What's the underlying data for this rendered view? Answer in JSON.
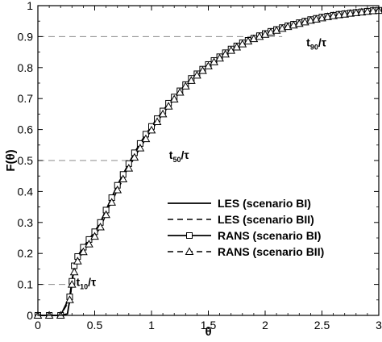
{
  "chart_data": {
    "type": "line",
    "xlabel": "θ",
    "ylabel": "F(θ)",
    "xlim": [
      0,
      3
    ],
    "ylim": [
      0,
      1
    ],
    "xticks": [
      0,
      0.5,
      1,
      1.5,
      2,
      2.5,
      3
    ],
    "xtick_labels": [
      "0",
      "0.5",
      "1",
      "1.5",
      "2",
      "2.5",
      "3"
    ],
    "yticks": [
      0,
      0.1,
      0.2,
      0.3,
      0.4,
      0.5,
      0.6,
      0.7,
      0.8,
      0.9,
      1
    ],
    "ytick_labels": [
      "0",
      "0.1",
      "0.2",
      "0.3",
      "0.4",
      "0.5",
      "0.6",
      "0.7",
      "0.8",
      "0.9",
      "1"
    ],
    "grid": false,
    "legend_position": "center-right",
    "reference_lines": [
      {
        "y": 0.1,
        "x_end": 0.28,
        "label_main": "t",
        "label_sub": "10",
        "label_tail": "/τ"
      },
      {
        "y": 0.5,
        "x_end": 0.8,
        "label_main": "t",
        "label_sub": "50",
        "label_tail": "/τ"
      },
      {
        "y": 0.9,
        "x_end": 2.15,
        "label_main": "t",
        "label_sub": "90",
        "label_tail": "/τ"
      }
    ],
    "series": [
      {
        "name": "LES (scenario BI)",
        "line": "solid",
        "marker": "none",
        "color": "#000000",
        "x": [
          0,
          0.1,
          0.2,
          0.26,
          0.28,
          0.3,
          0.32,
          0.35,
          0.4,
          0.45,
          0.5,
          0.55,
          0.6,
          0.7,
          0.8,
          0.9,
          1.0,
          1.1,
          1.2,
          1.3,
          1.4,
          1.5,
          1.6,
          1.7,
          1.8,
          1.9,
          2.0,
          2.2,
          2.4,
          2.6,
          2.8,
          3.0
        ],
        "y": [
          0,
          0,
          0,
          0.005,
          0.05,
          0.11,
          0.16,
          0.19,
          0.22,
          0.245,
          0.27,
          0.3,
          0.34,
          0.42,
          0.49,
          0.555,
          0.61,
          0.66,
          0.705,
          0.745,
          0.78,
          0.81,
          0.835,
          0.86,
          0.88,
          0.895,
          0.91,
          0.935,
          0.955,
          0.97,
          0.978,
          0.985
        ]
      },
      {
        "name": "LES (scenario BII)",
        "line": "dashed",
        "marker": "none",
        "color": "#000000",
        "x": [
          0,
          0.1,
          0.2,
          0.26,
          0.28,
          0.3,
          0.32,
          0.35,
          0.4,
          0.45,
          0.5,
          0.55,
          0.6,
          0.7,
          0.8,
          0.9,
          1.0,
          1.1,
          1.2,
          1.3,
          1.4,
          1.5,
          1.6,
          1.7,
          1.8,
          1.9,
          2.0,
          2.2,
          2.4,
          2.6,
          2.8,
          3.0
        ],
        "y": [
          0,
          0,
          0,
          0.005,
          0.045,
          0.1,
          0.15,
          0.18,
          0.21,
          0.235,
          0.26,
          0.29,
          0.33,
          0.41,
          0.48,
          0.545,
          0.6,
          0.655,
          0.7,
          0.74,
          0.775,
          0.805,
          0.83,
          0.855,
          0.875,
          0.89,
          0.905,
          0.93,
          0.952,
          0.968,
          0.977,
          0.984
        ]
      },
      {
        "name": "RANS (scenario BI)",
        "line": "solid",
        "marker": "square",
        "color": "#000000",
        "x": [
          0,
          0.1,
          0.2,
          0.28,
          0.3,
          0.32,
          0.35,
          0.4,
          0.45,
          0.5,
          0.55,
          0.6,
          0.65,
          0.7,
          0.75,
          0.8,
          0.85,
          0.9,
          0.95,
          1.0,
          1.05,
          1.1,
          1.15,
          1.2,
          1.25,
          1.3,
          1.35,
          1.4,
          1.45,
          1.5,
          1.55,
          1.6,
          1.65,
          1.7,
          1.75,
          1.8,
          1.85,
          1.9,
          1.95,
          2.0,
          2.05,
          2.1,
          2.15,
          2.2,
          2.25,
          2.3,
          2.35,
          2.4,
          2.45,
          2.5,
          2.55,
          2.6,
          2.65,
          2.7,
          2.75,
          2.8,
          2.85,
          2.9,
          2.95,
          3.0
        ],
        "y": [
          0,
          0,
          0,
          0.06,
          0.11,
          0.16,
          0.19,
          0.22,
          0.245,
          0.27,
          0.3,
          0.34,
          0.38,
          0.42,
          0.455,
          0.49,
          0.525,
          0.555,
          0.585,
          0.61,
          0.635,
          0.66,
          0.685,
          0.705,
          0.725,
          0.745,
          0.765,
          0.78,
          0.795,
          0.81,
          0.823,
          0.835,
          0.848,
          0.86,
          0.87,
          0.88,
          0.888,
          0.895,
          0.903,
          0.91,
          0.917,
          0.923,
          0.929,
          0.935,
          0.94,
          0.945,
          0.95,
          0.955,
          0.959,
          0.963,
          0.966,
          0.969,
          0.972,
          0.974,
          0.976,
          0.978,
          0.98,
          0.982,
          0.984,
          0.985
        ]
      },
      {
        "name": "RANS (scenario BII)",
        "line": "dashed",
        "marker": "triangle",
        "color": "#000000",
        "x": [
          0,
          0.1,
          0.2,
          0.28,
          0.3,
          0.32,
          0.35,
          0.4,
          0.45,
          0.5,
          0.55,
          0.6,
          0.65,
          0.7,
          0.75,
          0.8,
          0.85,
          0.9,
          0.95,
          1.0,
          1.05,
          1.1,
          1.15,
          1.2,
          1.25,
          1.3,
          1.35,
          1.4,
          1.45,
          1.5,
          1.55,
          1.6,
          1.65,
          1.7,
          1.75,
          1.8,
          1.85,
          1.9,
          1.95,
          2.0,
          2.05,
          2.1,
          2.15,
          2.2,
          2.25,
          2.3,
          2.35,
          2.4,
          2.45,
          2.5,
          2.55,
          2.6,
          2.65,
          2.7,
          2.75,
          2.8,
          2.85,
          2.9,
          2.95,
          3.0
        ],
        "y": [
          0,
          0,
          0,
          0.05,
          0.1,
          0.14,
          0.175,
          0.205,
          0.23,
          0.255,
          0.285,
          0.325,
          0.365,
          0.405,
          0.44,
          0.475,
          0.51,
          0.54,
          0.57,
          0.598,
          0.625,
          0.65,
          0.675,
          0.698,
          0.72,
          0.74,
          0.758,
          0.775,
          0.79,
          0.805,
          0.818,
          0.83,
          0.843,
          0.855,
          0.866,
          0.876,
          0.885,
          0.893,
          0.9,
          0.907,
          0.914,
          0.92,
          0.926,
          0.932,
          0.937,
          0.942,
          0.947,
          0.952,
          0.956,
          0.96,
          0.964,
          0.967,
          0.97,
          0.972,
          0.975,
          0.977,
          0.979,
          0.981,
          0.983,
          0.984
        ]
      }
    ]
  }
}
